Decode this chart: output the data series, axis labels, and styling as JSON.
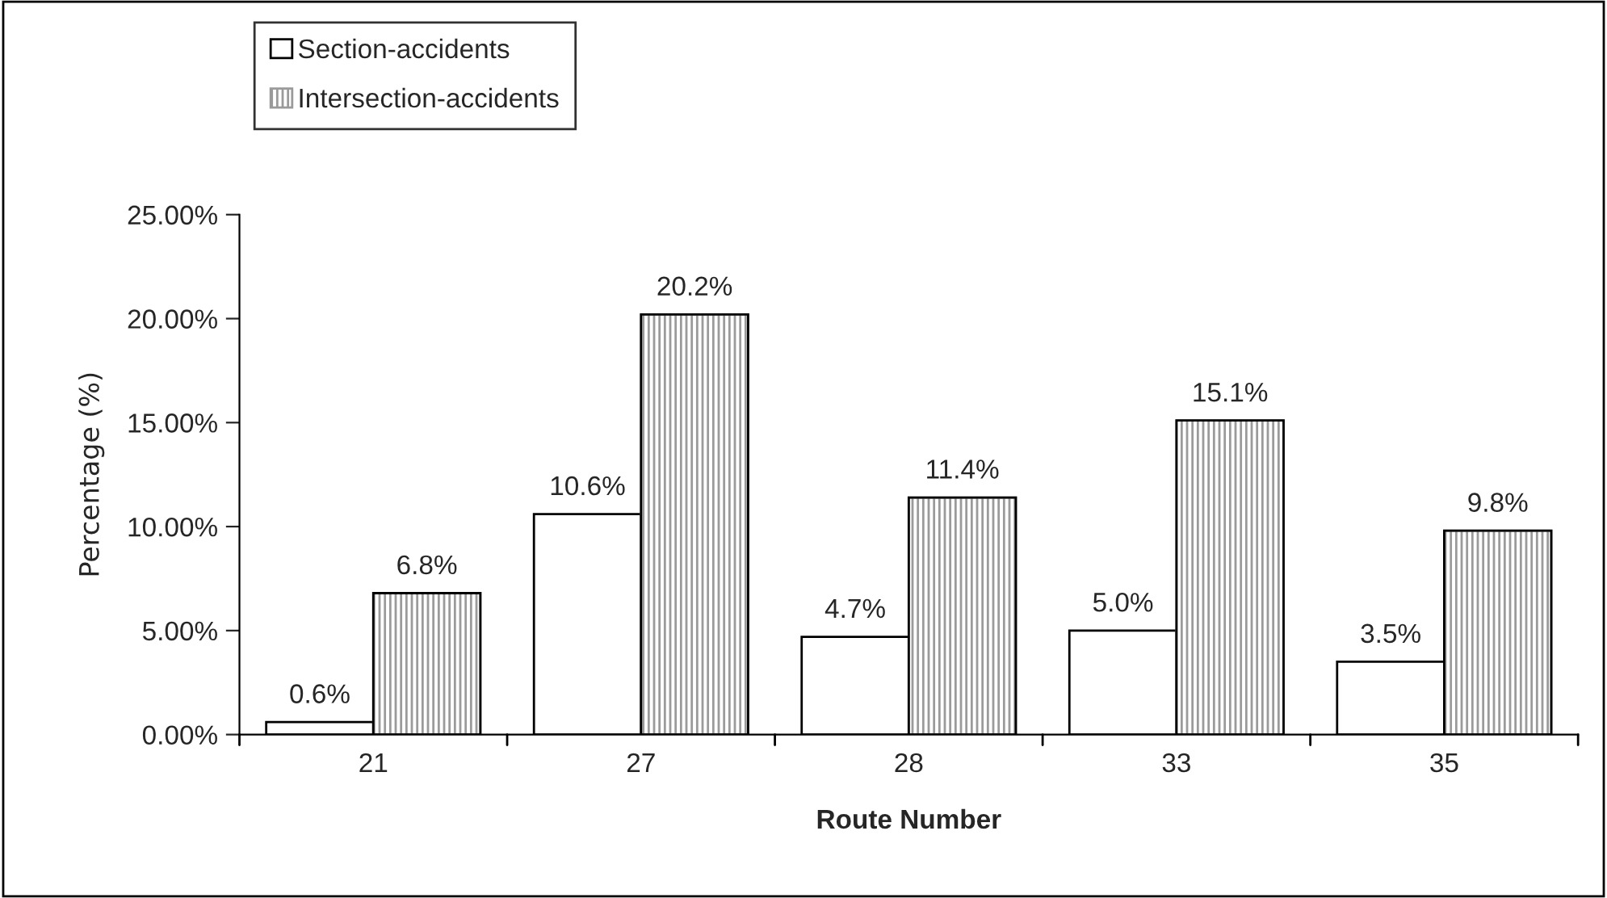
{
  "chart_data": {
    "type": "bar",
    "xlabel": "Route Number",
    "ylabel": "Percentage (%)",
    "categories": [
      "21",
      "27",
      "28",
      "33",
      "35"
    ],
    "series": [
      {
        "name": "Section-accidents",
        "color": "#ffffff",
        "values": [
          0.6,
          10.6,
          4.7,
          5.0,
          3.5
        ],
        "value_labels": [
          "0.6%",
          "10.6%",
          "4.7%",
          "5.0%",
          "3.5%"
        ]
      },
      {
        "name": "Intersection-accidents",
        "color": "#9a9a9a",
        "values": [
          6.8,
          20.2,
          11.4,
          15.1,
          9.8
        ],
        "value_labels": [
          "6.8%",
          "20.2%",
          "11.4%",
          "15.1%",
          "9.8%"
        ]
      }
    ],
    "ylim": [
      0,
      25
    ],
    "yticks": [
      {
        "value": 0,
        "label": "0.00%"
      },
      {
        "value": 5,
        "label": "5.00%"
      },
      {
        "value": 10,
        "label": "10.00%"
      },
      {
        "value": 15,
        "label": "15.00%"
      },
      {
        "value": 20,
        "label": "20.00%"
      },
      {
        "value": 25,
        "label": "25.00%"
      }
    ],
    "grid": false,
    "legend": "top left"
  }
}
